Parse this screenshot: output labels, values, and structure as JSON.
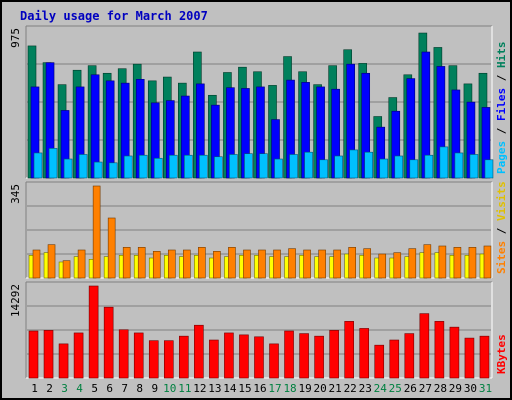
{
  "title": "Daily usage for March 2007",
  "colors": {
    "hits": "#00805c",
    "files": "#0000ff",
    "pages": "#00c0ff",
    "visits": "#ff8000",
    "sites": "#ffff00",
    "kbytes": "#ff0000",
    "weekend_label": "#008040",
    "weekday_label": "#000000",
    "grid": "#808080"
  },
  "panel_labels": {
    "top": [
      "Pages",
      " / ",
      "Files",
      " / ",
      "Hits"
    ],
    "middle": [
      "Sites",
      " / ",
      "Visits"
    ],
    "bottom": [
      "KBytes"
    ]
  },
  "max_labels": {
    "top": "975",
    "middle": "345",
    "bottom": "14292"
  },
  "chart_data": [
    {
      "type": "bar",
      "panel": "hits-files-pages",
      "ylim": [
        0,
        975
      ],
      "categories": [
        "1",
        "2",
        "3",
        "4",
        "5",
        "6",
        "7",
        "8",
        "9",
        "10",
        "11",
        "12",
        "13",
        "14",
        "15",
        "16",
        "17",
        "18",
        "19",
        "20",
        "21",
        "22",
        "23",
        "24",
        "25",
        "26",
        "27",
        "28",
        "29",
        "30",
        "31"
      ],
      "weekend_days": [
        "3",
        "4",
        "10",
        "11",
        "17",
        "18",
        "24",
        "25",
        "31"
      ],
      "series": [
        {
          "name": "Hits",
          "values": [
            870,
            760,
            615,
            710,
            740,
            690,
            720,
            750,
            640,
            665,
            625,
            830,
            545,
            695,
            730,
            700,
            610,
            800,
            700,
            615,
            740,
            845,
            755,
            405,
            530,
            680,
            955,
            860,
            740,
            620,
            690
          ]
        },
        {
          "name": "Files",
          "values": [
            600,
            760,
            445,
            600,
            680,
            640,
            625,
            650,
            495,
            510,
            540,
            620,
            480,
            595,
            590,
            600,
            385,
            645,
            630,
            600,
            585,
            750,
            690,
            335,
            440,
            655,
            830,
            735,
            580,
            500,
            465
          ]
        },
        {
          "name": "Pages",
          "values": [
            165,
            195,
            125,
            155,
            105,
            100,
            145,
            150,
            130,
            150,
            150,
            150,
            140,
            155,
            160,
            160,
            125,
            155,
            170,
            120,
            145,
            185,
            170,
            125,
            145,
            120,
            150,
            205,
            165,
            155,
            120
          ]
        }
      ]
    },
    {
      "type": "bar",
      "panel": "visits-sites",
      "ylim": [
        0,
        345
      ],
      "categories": [
        "1",
        "2",
        "3",
        "4",
        "5",
        "6",
        "7",
        "8",
        "9",
        "10",
        "11",
        "12",
        "13",
        "14",
        "15",
        "16",
        "17",
        "18",
        "19",
        "20",
        "21",
        "22",
        "23",
        "24",
        "25",
        "26",
        "27",
        "28",
        "29",
        "30",
        "31"
      ],
      "series": [
        {
          "name": "Visits",
          "values": [
            105,
            125,
            65,
            105,
            345,
            225,
            115,
            115,
            100,
            105,
            105,
            115,
            100,
            115,
            105,
            105,
            105,
            110,
            105,
            105,
            105,
            115,
            110,
            90,
            95,
            110,
            125,
            120,
            115,
            115,
            120
          ]
        },
        {
          "name": "Sites",
          "values": [
            85,
            95,
            60,
            80,
            70,
            80,
            85,
            85,
            75,
            85,
            80,
            85,
            75,
            80,
            85,
            85,
            80,
            80,
            85,
            80,
            80,
            90,
            85,
            75,
            75,
            80,
            95,
            95,
            85,
            85,
            90
          ]
        }
      ]
    },
    {
      "type": "bar",
      "panel": "kbytes",
      "ylim": [
        0,
        14292
      ],
      "categories": [
        "1",
        "2",
        "3",
        "4",
        "5",
        "6",
        "7",
        "8",
        "9",
        "10",
        "11",
        "12",
        "13",
        "14",
        "15",
        "16",
        "17",
        "18",
        "19",
        "20",
        "21",
        "22",
        "23",
        "24",
        "25",
        "26",
        "27",
        "28",
        "29",
        "30",
        "31"
      ],
      "series": [
        {
          "name": "KBytes",
          "values": [
            7300,
            7400,
            5300,
            7000,
            14292,
            11000,
            7500,
            7000,
            5800,
            5800,
            6500,
            8200,
            5900,
            7000,
            6700,
            6400,
            5300,
            7300,
            6900,
            6500,
            7400,
            8800,
            7700,
            5100,
            5900,
            6900,
            10000,
            8800,
            7900,
            6200,
            6500
          ]
        }
      ]
    }
  ]
}
